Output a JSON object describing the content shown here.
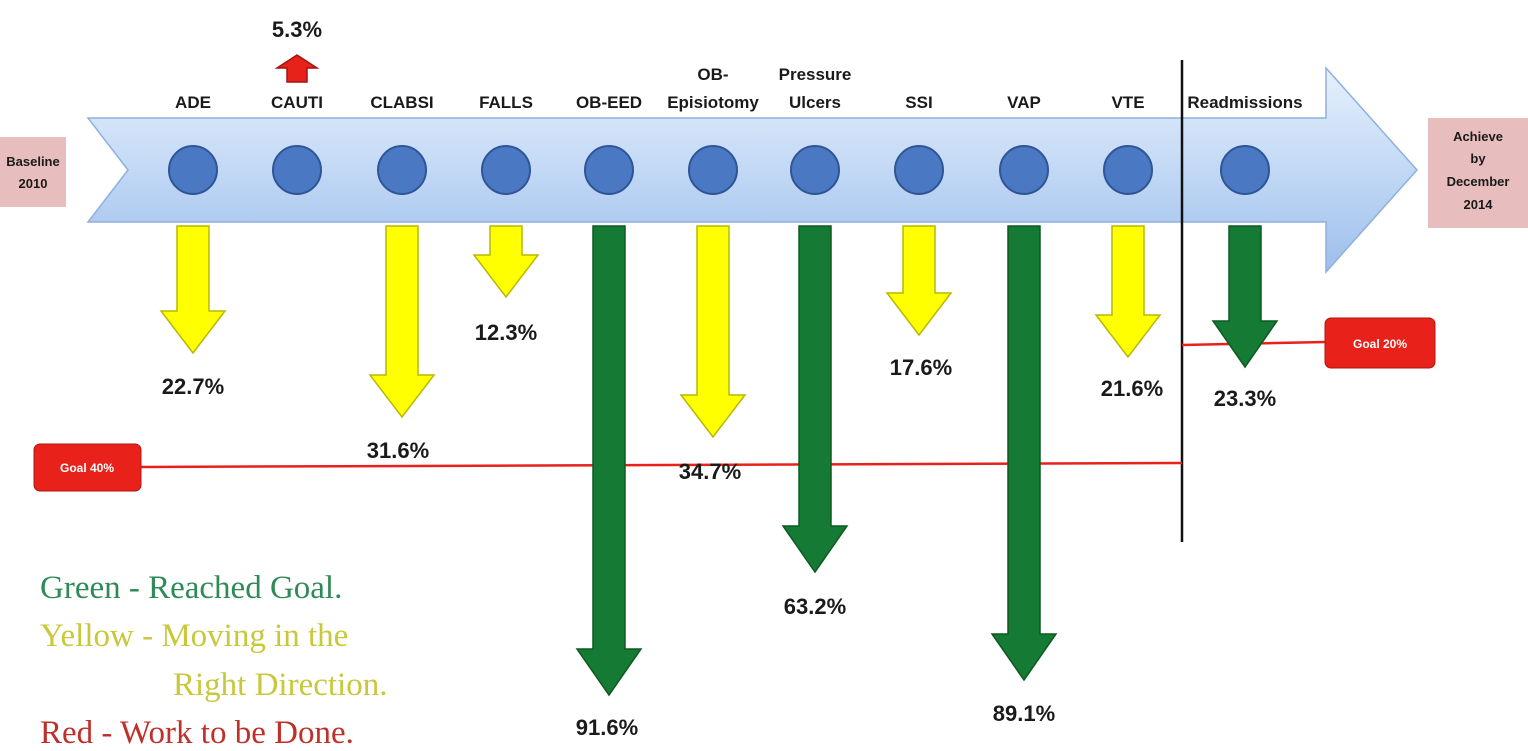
{
  "chart_data": {
    "type": "bar",
    "start_label": [
      "Baseline",
      "2010"
    ],
    "end_label": [
      "Achieve",
      "by",
      "December",
      "2014"
    ],
    "categories": [
      {
        "label": [
          "ADE"
        ],
        "value": "22.7%",
        "direction": "down",
        "status": "yellow"
      },
      {
        "label": [
          "CAUTI"
        ],
        "value": "5.3%",
        "direction": "up",
        "status": "red"
      },
      {
        "label": [
          "CLABSI"
        ],
        "value": "31.6%",
        "direction": "down",
        "status": "yellow"
      },
      {
        "label": [
          "FALLS"
        ],
        "value": "12.3%",
        "direction": "down",
        "status": "yellow"
      },
      {
        "label": [
          "OB-EED"
        ],
        "value": "91.6%",
        "direction": "down",
        "status": "green"
      },
      {
        "label": [
          "OB-",
          "Episiotomy"
        ],
        "value": "34.7%",
        "direction": "down",
        "status": "yellow"
      },
      {
        "label": [
          "Pressure",
          "Ulcers"
        ],
        "value": "63.2%",
        "direction": "down",
        "status": "green"
      },
      {
        "label": [
          "SSI"
        ],
        "value": "17.6%",
        "direction": "down",
        "status": "yellow"
      },
      {
        "label": [
          "VAP"
        ],
        "value": "89.1%",
        "direction": "down",
        "status": "green"
      },
      {
        "label": [
          "VTE"
        ],
        "value": "21.6%",
        "direction": "down",
        "status": "yellow"
      },
      {
        "label": [
          "Readmissions"
        ],
        "value": "23.3%",
        "direction": "down",
        "status": "green"
      }
    ],
    "goals": [
      {
        "label": "Goal 40%",
        "applies_to": "ADE–VTE"
      },
      {
        "label": "Goal 20%",
        "applies_to": "Readmissions"
      }
    ],
    "legend": [
      {
        "text": "Green - Reached Goal.",
        "color": "#2e8b57"
      },
      {
        "text": "Yellow - Moving in the",
        "color": "#c8c83a"
      },
      {
        "text": "Right Direction.",
        "color": "#c8c83a"
      },
      {
        "text": "Red - Work to be Done.",
        "color": "#c0302a"
      }
    ]
  },
  "colors": {
    "yellow_arrow": "#ffff00",
    "green_arrow": "#157a33",
    "red_arrow": "#e8211a",
    "circle": "#4a78c2",
    "goal_line": "#e8211a",
    "end_box": "#e8bdbd",
    "timeline_light": "#d8e8fa",
    "timeline_mid": "#a9c8ef"
  }
}
